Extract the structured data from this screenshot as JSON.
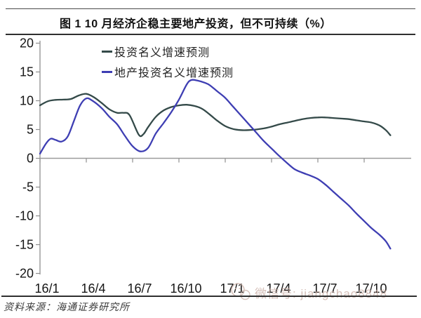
{
  "header": {
    "title": "图 1  10 月经济企稳主要地产投资，但不可持续（%）"
  },
  "legend": {
    "items": [
      {
        "label": "投资名义增速预测",
        "color": "#344a49"
      },
      {
        "label": "地产投资名义增速预测",
        "color": "#3e3eb3"
      }
    ]
  },
  "footer": {
    "source": "资料来源：海通证券研究所"
  },
  "watermark": {
    "icon": "wechat-icon",
    "text": "微信号: jiangchao8848"
  },
  "chart_data": {
    "type": "line",
    "title": "图 1  10 月经济企稳主要地产投资，但不可持续（%）",
    "xlabel": "",
    "ylabel": "",
    "ylim": [
      -20,
      20
    ],
    "y_ticks": [
      20,
      15,
      10,
      5,
      0,
      -5,
      -10,
      -15,
      -20
    ],
    "x_tick_labels": [
      "16/1",
      "16/4",
      "16/7",
      "16/10",
      "17/1",
      "17/4",
      "17/7",
      "17/10"
    ],
    "x_tick_months": [
      0,
      3,
      6,
      9,
      12,
      15,
      18,
      21
    ],
    "x_range_months": [
      0,
      24
    ],
    "grid": false,
    "zero_line": true,
    "legend_position": "top-left-inside",
    "axis_color": "#8f8f8f",
    "series": [
      {
        "name": "投资名义增速预测",
        "color": "#344a49",
        "points": [
          [
            0,
            9.2
          ],
          [
            0.5,
            9.9
          ],
          [
            1,
            10.15
          ],
          [
            1.5,
            10.2
          ],
          [
            2,
            10.3
          ],
          [
            2.5,
            10.9
          ],
          [
            3,
            11.2
          ],
          [
            3.5,
            10.6
          ],
          [
            4,
            9.6
          ],
          [
            4.5,
            8.5
          ],
          [
            5,
            7.9
          ],
          [
            5.4,
            7.9
          ],
          [
            5.8,
            7.5
          ],
          [
            6.4,
            4.1
          ],
          [
            6.7,
            4.2
          ],
          [
            7,
            5.4
          ],
          [
            7.5,
            7.2
          ],
          [
            8,
            8.3
          ],
          [
            8.5,
            8.9
          ],
          [
            9,
            9.2
          ],
          [
            9.5,
            9.3
          ],
          [
            10,
            9.1
          ],
          [
            10.5,
            8.6
          ],
          [
            11,
            7.6
          ],
          [
            11.5,
            6.5
          ],
          [
            12,
            5.6
          ],
          [
            12.5,
            5.1
          ],
          [
            13,
            4.9
          ],
          [
            13.5,
            4.9
          ],
          [
            14,
            5.0
          ],
          [
            14.5,
            5.2
          ],
          [
            15,
            5.5
          ],
          [
            15.5,
            5.9
          ],
          [
            16,
            6.2
          ],
          [
            16.5,
            6.5
          ],
          [
            17,
            6.8
          ],
          [
            17.5,
            7.0
          ],
          [
            18,
            7.1
          ],
          [
            18.5,
            7.1
          ],
          [
            19,
            7.0
          ],
          [
            19.5,
            6.9
          ],
          [
            20,
            6.8
          ],
          [
            20.5,
            6.6
          ],
          [
            21,
            6.4
          ],
          [
            21.5,
            6.2
          ],
          [
            22,
            5.7
          ],
          [
            22.4,
            4.9
          ],
          [
            22.7,
            4.0
          ]
        ]
      },
      {
        "name": "地产投资名义增速预测",
        "color": "#3e3eb3",
        "points": [
          [
            0,
            0.8
          ],
          [
            0.4,
            2.6
          ],
          [
            0.7,
            3.4
          ],
          [
            1,
            3.2
          ],
          [
            1.4,
            2.9
          ],
          [
            1.8,
            3.8
          ],
          [
            2.2,
            6.5
          ],
          [
            2.6,
            9.2
          ],
          [
            3,
            10.4
          ],
          [
            3.4,
            10.0
          ],
          [
            4,
            8.7
          ],
          [
            4.5,
            7.2
          ],
          [
            5,
            5.9
          ],
          [
            5.5,
            3.9
          ],
          [
            6,
            2.1
          ],
          [
            6.5,
            1.2
          ],
          [
            7,
            1.8
          ],
          [
            7.5,
            4.3
          ],
          [
            8,
            6.1
          ],
          [
            8.5,
            8.0
          ],
          [
            9,
            10.2
          ],
          [
            9.5,
            12.8
          ],
          [
            9.8,
            13.6
          ],
          [
            10.2,
            13.5
          ],
          [
            10.7,
            13.1
          ],
          [
            11,
            12.7
          ],
          [
            11.5,
            11.6
          ],
          [
            12,
            10.5
          ],
          [
            12.5,
            9.0
          ],
          [
            13,
            7.5
          ],
          [
            13.5,
            6.0
          ],
          [
            14,
            4.5
          ],
          [
            14.5,
            3.0
          ],
          [
            15,
            1.7
          ],
          [
            15.5,
            0.4
          ],
          [
            16,
            -0.8
          ],
          [
            16.5,
            -1.9
          ],
          [
            17,
            -2.5
          ],
          [
            17.5,
            -3.0
          ],
          [
            18,
            -3.6
          ],
          [
            18.5,
            -4.6
          ],
          [
            19,
            -5.8
          ],
          [
            19.5,
            -7.0
          ],
          [
            20,
            -8.2
          ],
          [
            20.5,
            -9.6
          ],
          [
            21,
            -10.9
          ],
          [
            21.5,
            -12.2
          ],
          [
            22,
            -13.3
          ],
          [
            22.4,
            -14.4
          ],
          [
            22.7,
            -15.7
          ]
        ]
      }
    ]
  }
}
